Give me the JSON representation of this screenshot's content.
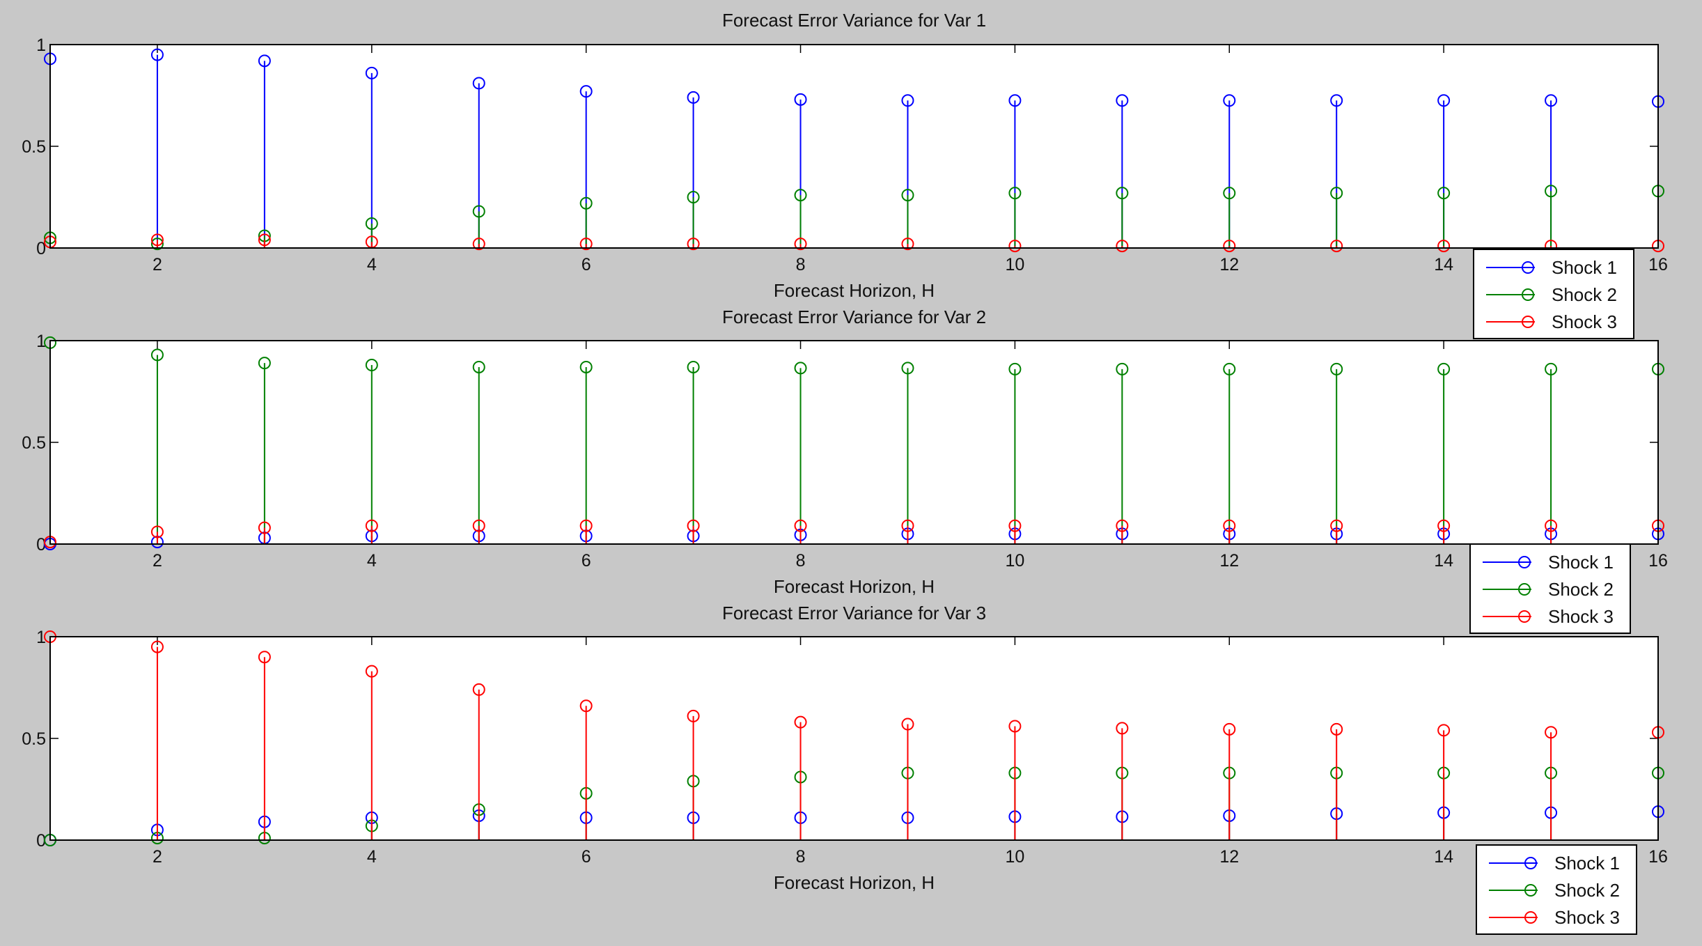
{
  "chart_data": [
    {
      "type": "stem",
      "title": "Forecast Error Variance for Var 1",
      "xlabel": "Forecast Horizon, H",
      "ylabel": "",
      "xlim": [
        1,
        16
      ],
      "ylim": [
        0,
        1
      ],
      "x_ticks": [
        2,
        4,
        6,
        8,
        10,
        12,
        14,
        16
      ],
      "y_ticks": [
        0,
        0.5,
        1
      ],
      "y_tick_labels": [
        "0",
        "0.5",
        "1"
      ],
      "x": [
        1,
        2,
        3,
        4,
        5,
        6,
        7,
        8,
        9,
        10,
        11,
        12,
        13,
        14,
        15,
        16
      ],
      "legend_position": "bottom-right",
      "series": [
        {
          "name": "Shock 1",
          "color": "#0000ff",
          "values": [
            0.93,
            0.95,
            0.92,
            0.86,
            0.81,
            0.77,
            0.74,
            0.73,
            0.725,
            0.725,
            0.725,
            0.725,
            0.725,
            0.725,
            0.725,
            0.72
          ]
        },
        {
          "name": "Shock 2",
          "color": "#008000",
          "values": [
            0.05,
            0.02,
            0.06,
            0.12,
            0.18,
            0.22,
            0.25,
            0.26,
            0.26,
            0.27,
            0.27,
            0.27,
            0.27,
            0.27,
            0.28,
            0.28
          ]
        },
        {
          "name": "Shock 3",
          "color": "#ff0000",
          "values": [
            0.03,
            0.04,
            0.04,
            0.03,
            0.02,
            0.02,
            0.02,
            0.02,
            0.02,
            0.01,
            0.01,
            0.01,
            0.01,
            0.01,
            0.01,
            0.01
          ]
        }
      ]
    },
    {
      "type": "stem",
      "title": "Forecast Error Variance for Var 2",
      "xlabel": "Forecast Horizon, H",
      "ylabel": "",
      "xlim": [
        1,
        16
      ],
      "ylim": [
        0,
        1
      ],
      "x_ticks": [
        2,
        4,
        6,
        8,
        10,
        12,
        14,
        16
      ],
      "y_ticks": [
        0,
        0.5,
        1
      ],
      "y_tick_labels": [
        "0",
        "0.5",
        "1"
      ],
      "x": [
        1,
        2,
        3,
        4,
        5,
        6,
        7,
        8,
        9,
        10,
        11,
        12,
        13,
        14,
        15,
        16
      ],
      "legend_position": "bottom-right",
      "series": [
        {
          "name": "Shock 1",
          "color": "#0000ff",
          "values": [
            0.0,
            0.01,
            0.03,
            0.04,
            0.04,
            0.04,
            0.04,
            0.045,
            0.05,
            0.05,
            0.05,
            0.05,
            0.05,
            0.05,
            0.05,
            0.05
          ]
        },
        {
          "name": "Shock 2",
          "color": "#008000",
          "values": [
            0.99,
            0.93,
            0.89,
            0.88,
            0.87,
            0.87,
            0.87,
            0.865,
            0.865,
            0.86,
            0.86,
            0.86,
            0.86,
            0.86,
            0.86,
            0.86
          ]
        },
        {
          "name": "Shock 3",
          "color": "#ff0000",
          "values": [
            0.01,
            0.06,
            0.08,
            0.09,
            0.09,
            0.09,
            0.09,
            0.09,
            0.09,
            0.09,
            0.09,
            0.09,
            0.09,
            0.09,
            0.09,
            0.09
          ]
        }
      ]
    },
    {
      "type": "stem",
      "title": "Forecast Error Variance for Var 3",
      "xlabel": "Forecast Horizon, H",
      "ylabel": "",
      "xlim": [
        1,
        16
      ],
      "ylim": [
        0,
        1
      ],
      "x_ticks": [
        2,
        4,
        6,
        8,
        10,
        12,
        14,
        16
      ],
      "y_ticks": [
        0,
        0.5,
        1
      ],
      "y_tick_labels": [
        "0",
        "0.5",
        "1"
      ],
      "x": [
        1,
        2,
        3,
        4,
        5,
        6,
        7,
        8,
        9,
        10,
        11,
        12,
        13,
        14,
        15,
        16
      ],
      "legend_position": "bottom-right",
      "series": [
        {
          "name": "Shock 1",
          "color": "#0000ff",
          "values": [
            0.0,
            0.05,
            0.09,
            0.11,
            0.12,
            0.11,
            0.11,
            0.11,
            0.11,
            0.115,
            0.115,
            0.12,
            0.13,
            0.135,
            0.135,
            0.14
          ]
        },
        {
          "name": "Shock 2",
          "color": "#008000",
          "values": [
            0.0,
            0.01,
            0.01,
            0.07,
            0.15,
            0.23,
            0.29,
            0.31,
            0.33,
            0.33,
            0.33,
            0.33,
            0.33,
            0.33,
            0.33,
            0.33
          ]
        },
        {
          "name": "Shock 3",
          "color": "#ff0000",
          "values": [
            1.0,
            0.95,
            0.9,
            0.83,
            0.74,
            0.66,
            0.61,
            0.58,
            0.57,
            0.56,
            0.55,
            0.545,
            0.545,
            0.54,
            0.53,
            0.53
          ]
        }
      ]
    }
  ]
}
